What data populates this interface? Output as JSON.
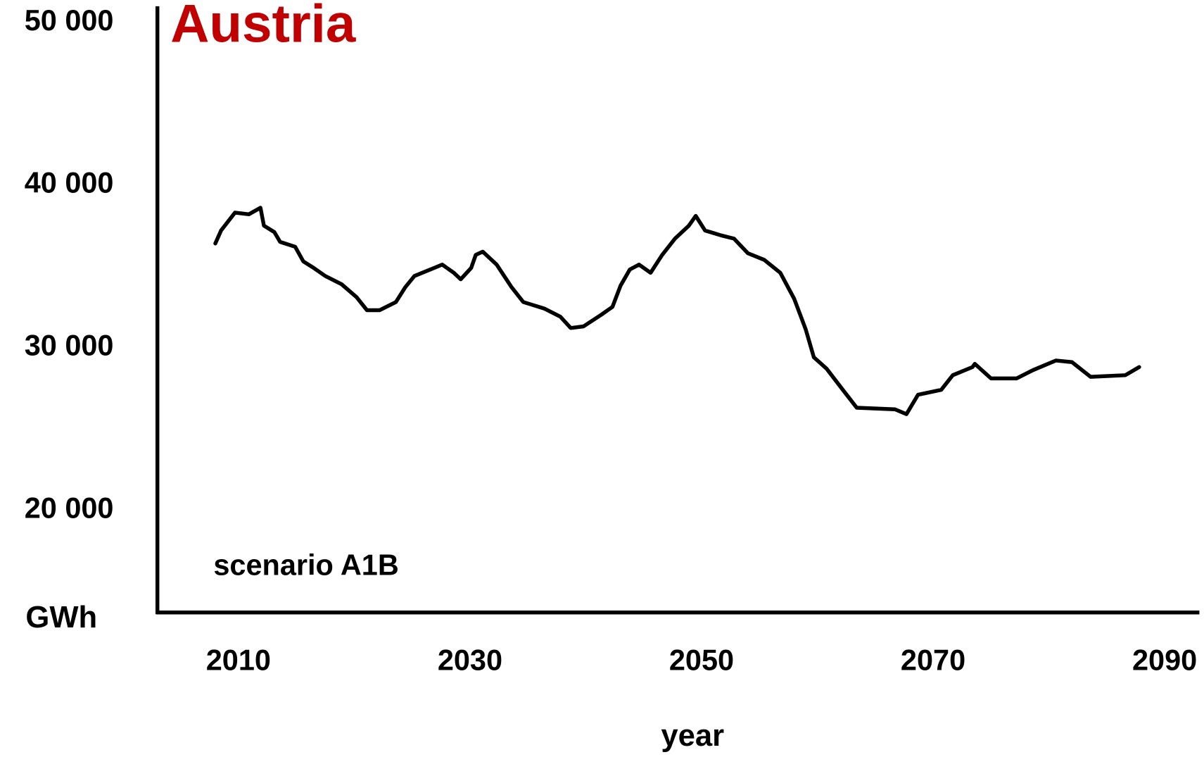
{
  "chart_data": {
    "type": "line",
    "title": "Austria",
    "annotation": "scenario A1B",
    "y_label": "GWh",
    "x_label": "year",
    "xlim": [
      2003,
      2093
    ],
    "xticks": [
      2010,
      2030,
      2050,
      2070,
      2090
    ],
    "ylim": [
      13700,
      51000
    ],
    "yticks": [
      {
        "value": 20000,
        "label": "20 000"
      },
      {
        "value": 30000,
        "label": "30 000"
      },
      {
        "value": 40000,
        "label": "40 000"
      },
      {
        "value": 50000,
        "label": "50 000"
      }
    ],
    "grid": false,
    "series": [
      {
        "name": "Austria",
        "color": "#000000",
        "x": [
          2008.0,
          2008.5,
          2009.7,
          2010.9,
          2011.9,
          2012.2,
          2013.1,
          2013.6,
          2014.9,
          2015.6,
          2016.5,
          2017.5,
          2018.9,
          2020.2,
          2021.1,
          2022.2,
          2023.6,
          2024.4,
          2025.2,
          2026.9,
          2027.6,
          2028.6,
          2029.2,
          2030.1,
          2030.5,
          2031.1,
          2032.3,
          2033.6,
          2034.6,
          2036.4,
          2037.8,
          2038.7,
          2039.8,
          2041.3,
          2042.3,
          2043.0,
          2043.8,
          2044.6,
          2045.6,
          2046.6,
          2047.7,
          2048.9,
          2049.5,
          2050.3,
          2051.7,
          2052.8,
          2054.0,
          2055.4,
          2056.8,
          2058.0,
          2059.0,
          2059.7,
          2060.8,
          2062.2,
          2063.4,
          2066.7,
          2067.7,
          2068.7,
          2070.7,
          2071.7,
          2073.4,
          2073.6,
          2075.0,
          2077.2,
          2078.6,
          2080.6,
          2082.0,
          2083.6,
          2086.6,
          2087.8
        ],
        "values": [
          36400,
          37200,
          38300,
          38200,
          38600,
          37500,
          37100,
          36500,
          36200,
          35300,
          34900,
          34400,
          33900,
          33100,
          32300,
          32300,
          32800,
          33700,
          34400,
          34900,
          35100,
          34600,
          34200,
          34900,
          35700,
          35900,
          35100,
          33700,
          32800,
          32400,
          31900,
          31200,
          31300,
          32000,
          32500,
          33800,
          34800,
          35100,
          34600,
          35700,
          36700,
          37500,
          38100,
          37200,
          36900,
          36700,
          35800,
          35400,
          34600,
          33000,
          31100,
          29400,
          28700,
          27400,
          26300,
          26200,
          25900,
          27100,
          27400,
          28300,
          28800,
          29000,
          28100,
          28100,
          28600,
          29200,
          29100,
          28200,
          28300,
          28800
        ]
      }
    ]
  }
}
